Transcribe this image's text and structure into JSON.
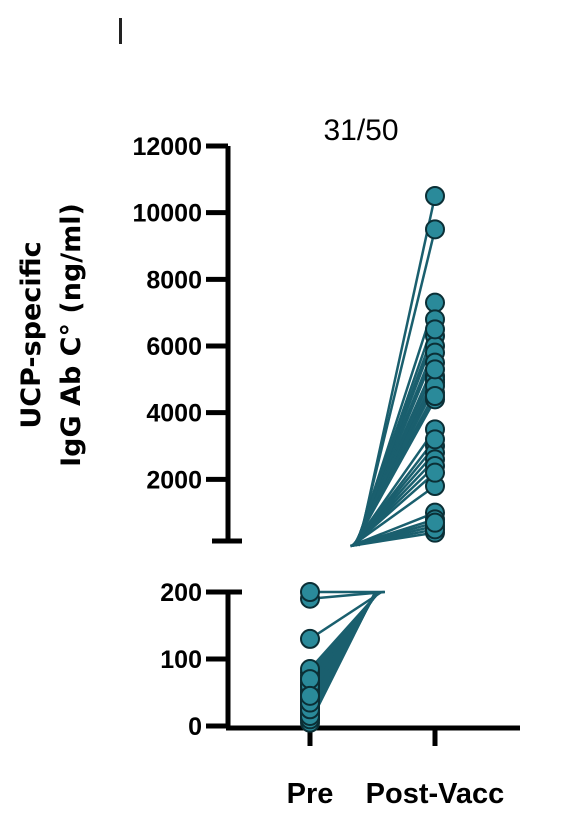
{
  "chart_data": {
    "type": "line",
    "title": "31/50",
    "ylabel_line1": "UCP-specific",
    "ylabel_line2": "IgG Ab C° (ng/ml)",
    "categories": [
      "Pre",
      "Post-Vacc"
    ],
    "y_axis_segments": [
      {
        "range": [
          0,
          200
        ],
        "ticks": [
          0,
          100,
          200
        ],
        "tick_labels": [
          "0",
          "100",
          "200"
        ]
      },
      {
        "range": [
          0,
          12000
        ],
        "ticks": [
          2000,
          4000,
          6000,
          8000,
          10000,
          12000
        ],
        "tick_labels": [
          "2000",
          "4000",
          "6000",
          "8000",
          "10000",
          "12000"
        ]
      }
    ],
    "axis_break": true,
    "series_color": "#1a5f6e",
    "marker_color": "#2a8a9a",
    "pre_values": [
      10,
      20,
      30,
      40,
      50,
      60,
      70,
      80,
      190,
      200,
      130,
      5,
      15,
      25,
      35,
      45,
      55,
      65,
      75,
      85,
      20,
      30,
      50,
      60,
      10,
      40,
      70,
      15,
      25,
      35,
      45
    ],
    "post_values": [
      10500,
      9500,
      7300,
      6800,
      6300,
      6000,
      5800,
      5500,
      5100,
      4900,
      4600,
      4400,
      3500,
      3000,
      2800,
      2600,
      2400,
      1800,
      1000,
      800,
      600,
      400,
      6500,
      5000,
      4800,
      4500,
      2200,
      500,
      700,
      3200,
      5300
    ]
  }
}
